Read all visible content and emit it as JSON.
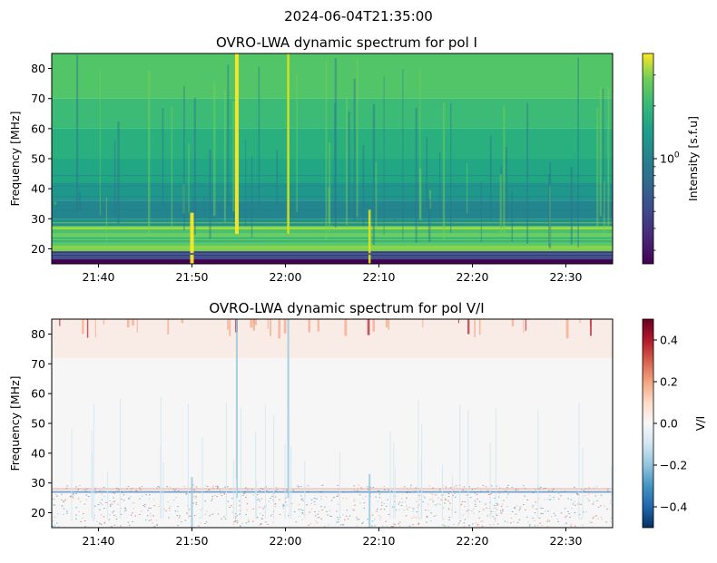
{
  "suptitle": "2024-06-04T21:35:00",
  "chart_data": [
    {
      "type": "heatmap",
      "title": "OVRO-LWA dynamic spectrum for pol I",
      "ylabel": "Frequency [MHz]",
      "xlabel": "",
      "colorbar_label": "Intensity [s.f.u]",
      "colorscale": "viridis",
      "log_color_scale": true,
      "x_range": [
        "21:35",
        "22:35"
      ],
      "x_ticks": [
        "21:40",
        "21:50",
        "22:00",
        "22:10",
        "22:20",
        "22:30"
      ],
      "x_tick_values_min": [
        5,
        15,
        25,
        35,
        45,
        55
      ],
      "ylim": [
        15,
        85
      ],
      "y_ticks": [
        20,
        30,
        40,
        50,
        60,
        70,
        80
      ],
      "colorbar_ticks": [
        {
          "base": "10",
          "exp": "0",
          "value": 1.0
        }
      ],
      "colorbar_range_log10": [
        -0.6,
        0.6
      ],
      "features": [
        {
          "kind": "burst",
          "time_min": 19.8,
          "freq_range": [
            25,
            85
          ],
          "intensity": "high"
        },
        {
          "kind": "burst",
          "time_min": 25.3,
          "freq_range": [
            25,
            85
          ],
          "intensity": "medium"
        },
        {
          "kind": "burst",
          "time_min": 15.0,
          "freq_range": [
            15,
            32
          ],
          "intensity": "high"
        },
        {
          "kind": "burst",
          "time_min": 34.0,
          "freq_range": [
            15,
            33
          ],
          "intensity": "medium"
        }
      ]
    },
    {
      "type": "heatmap",
      "title": "OVRO-LWA dynamic spectrum for pol V/I",
      "ylabel": "Frequency [MHz]",
      "xlabel": "",
      "colorbar_label": "V/I",
      "colorscale": "RdBu_r",
      "x_range": [
        "21:35",
        "22:35"
      ],
      "x_ticks": [
        "21:40",
        "21:50",
        "22:00",
        "22:10",
        "22:20",
        "22:30"
      ],
      "x_tick_values_min": [
        5,
        15,
        25,
        35,
        45,
        55
      ],
      "ylim": [
        15,
        85
      ],
      "y_ticks": [
        20,
        30,
        40,
        50,
        60,
        70,
        80
      ],
      "colorbar_range": [
        -0.5,
        0.5
      ],
      "colorbar_ticks": [
        -0.4,
        -0.2,
        0.0,
        0.2,
        0.4
      ],
      "colorbar_tick_labels": [
        "−0.4",
        "−0.2",
        "0.0",
        "0.2",
        "0.4"
      ]
    }
  ]
}
